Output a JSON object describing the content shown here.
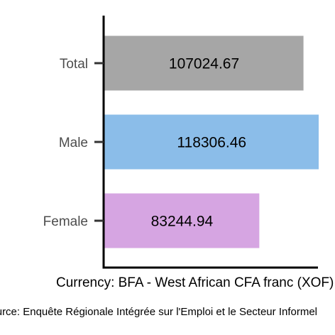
{
  "chart_data": {
    "type": "bar",
    "orientation": "horizontal",
    "categories": [
      "Total",
      "Male",
      "Female"
    ],
    "values": [
      107024.67,
      118306.46,
      83244.94
    ],
    "value_labels": [
      "107024.67",
      "118306.46",
      "83244.94"
    ],
    "colors": [
      "#a6a6a6",
      "#8bbde9",
      "#d6a5e2"
    ],
    "xlabel": "Currency: BFA - West African CFA franc (XOF)",
    "ylabel": "",
    "xlim": [
      0,
      124000
    ],
    "grid": false,
    "legend": "none",
    "caption": "Source: Enquête Régionale Intégrée sur l'Emploi et le Secteur Informel"
  }
}
